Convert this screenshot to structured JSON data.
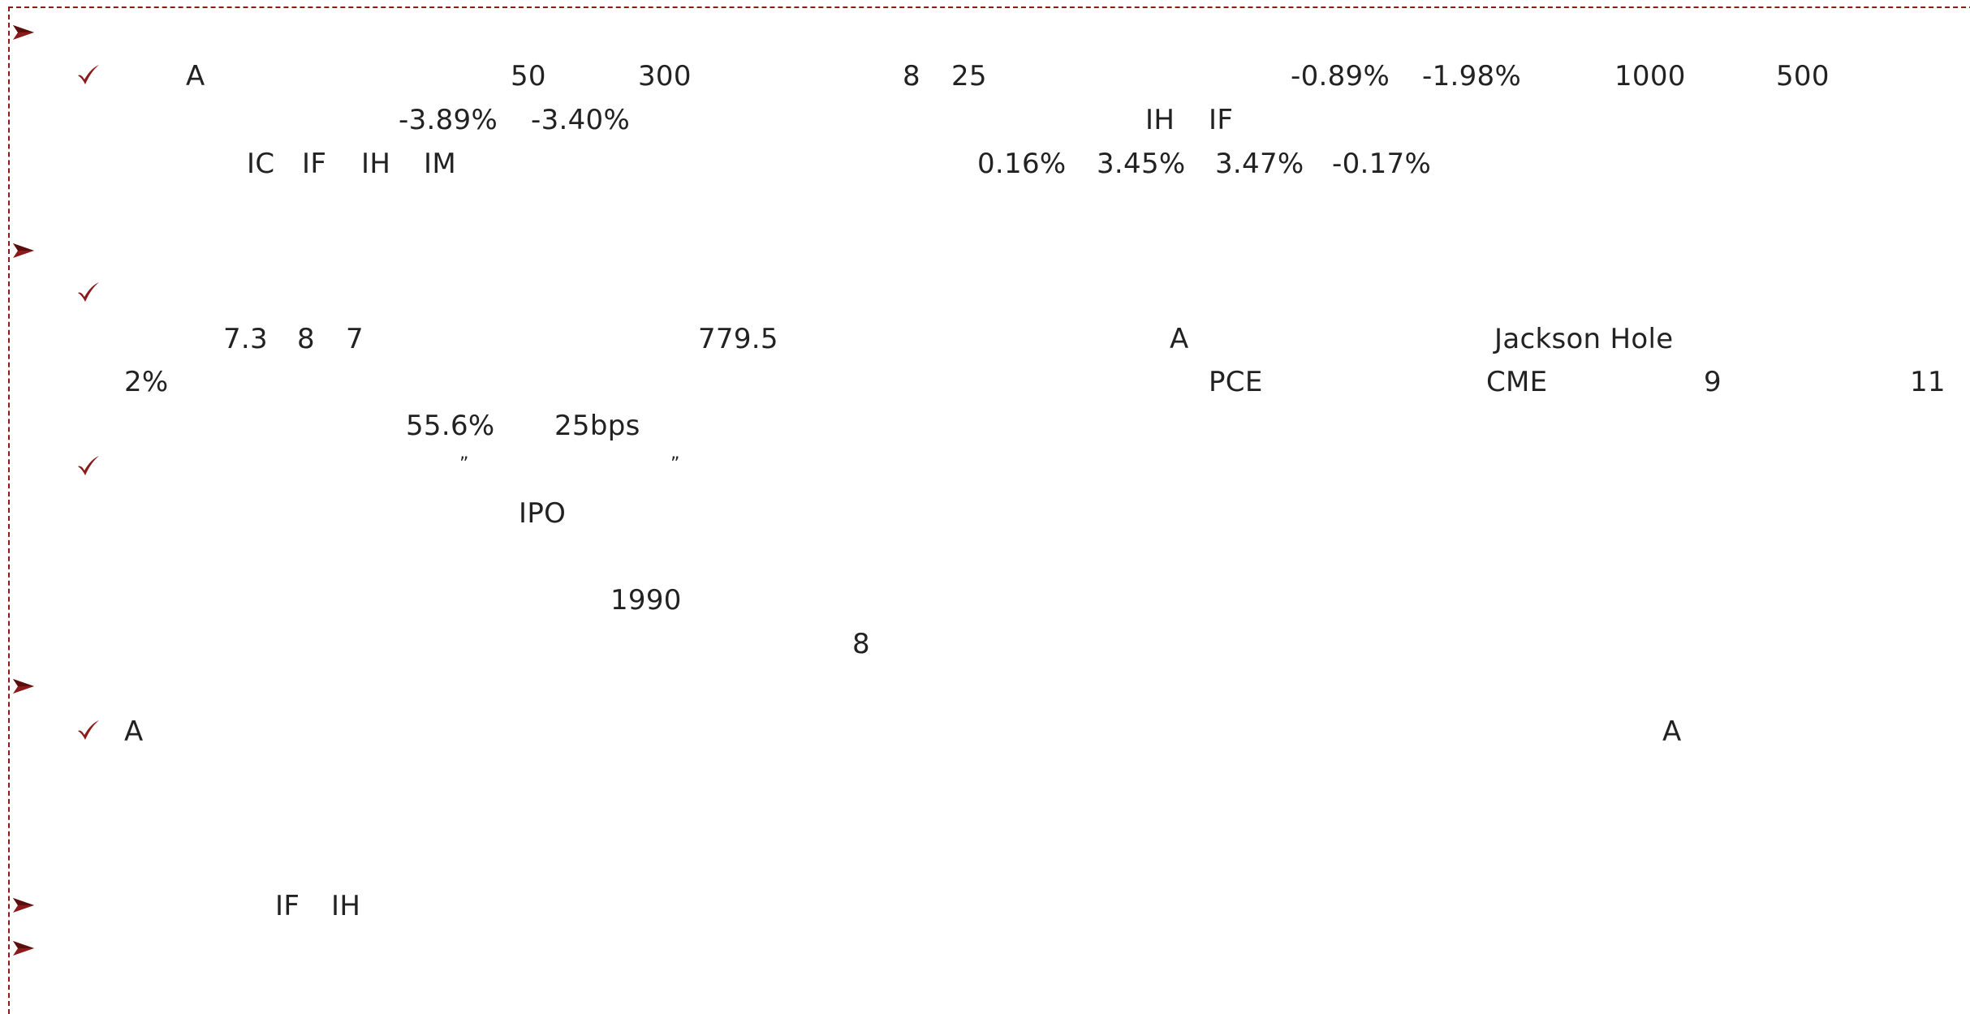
{
  "accent_color": "#8b1a1a",
  "bullet_icons": {
    "section": "arrow-bullet-icon",
    "item": "check-bullet-icon"
  },
  "lines": [
    [
      "A",
      "50",
      "300",
      "8",
      "25",
      "-0.89%",
      "-1.98%",
      "1000",
      "500"
    ],
    [
      "-3.89%",
      "-3.40%",
      "IH",
      "IF"
    ],
    [
      "IC",
      "IF",
      "IH",
      "IM",
      "0.16%",
      "3.45%",
      "3.47%",
      "-0.17%"
    ],
    [
      "7.3",
      "8",
      "7",
      "779.5",
      "A",
      "Jackson Hole"
    ],
    [
      "2%",
      "PCE",
      "CME",
      "9",
      "11"
    ],
    [
      "55.6%",
      "25bps"
    ],
    [
      "”",
      "”"
    ],
    [
      "IPO"
    ],
    [
      "1990"
    ],
    [
      "8"
    ],
    [
      "A",
      "A"
    ],
    [
      "IF",
      "IH"
    ]
  ]
}
